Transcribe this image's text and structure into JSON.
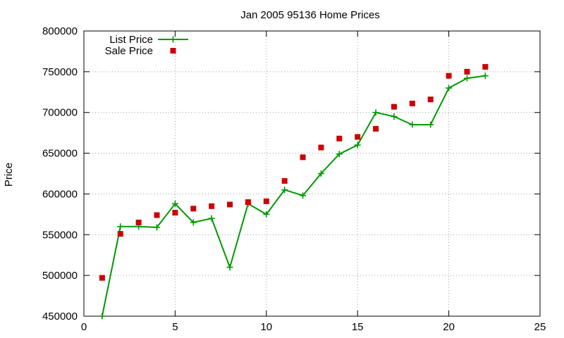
{
  "chart_data": {
    "type": "line",
    "title": "Jan 2005 95136 Home Prices",
    "xlabel": "",
    "ylabel": "Price",
    "xlim": [
      0,
      25
    ],
    "ylim": [
      450000,
      800000
    ],
    "x_ticks": [
      0,
      5,
      10,
      15,
      20,
      25
    ],
    "y_ticks": [
      450000,
      500000,
      550000,
      600000,
      650000,
      700000,
      750000,
      800000
    ],
    "x_tick_labels": [
      "0",
      "5",
      "10",
      "15",
      "20",
      "25"
    ],
    "y_tick_labels": [
      "450000",
      "500000",
      "550000",
      "600000",
      "650000",
      "700000",
      "750000",
      "800000"
    ],
    "grid": true,
    "legend_position": "top-left",
    "series": [
      {
        "name": "List Price",
        "style": "line-plus",
        "color": "#009900",
        "x": [
          1,
          2,
          3,
          4,
          5,
          6,
          7,
          8,
          9,
          10,
          11,
          12,
          13,
          14,
          15,
          16,
          17,
          18,
          19,
          20,
          21,
          22
        ],
        "values": [
          450000,
          560000,
          560000,
          559000,
          588000,
          565000,
          570000,
          510000,
          588000,
          575000,
          605000,
          598000,
          625000,
          649000,
          660000,
          700000,
          695000,
          685000,
          685000,
          730000,
          742000,
          745000
        ]
      },
      {
        "name": "Sale Price",
        "style": "square-points",
        "color": "#cc0000",
        "x": [
          1,
          2,
          3,
          4,
          5,
          6,
          7,
          8,
          9,
          10,
          11,
          12,
          13,
          14,
          15,
          16,
          17,
          18,
          19,
          20,
          21,
          22
        ],
        "values": [
          497000,
          551000,
          565000,
          574000,
          577000,
          582000,
          585000,
          587000,
          590000,
          591000,
          616000,
          645000,
          657000,
          668000,
          670000,
          680000,
          707000,
          711000,
          716000,
          745000,
          750000,
          756000
        ]
      }
    ]
  }
}
